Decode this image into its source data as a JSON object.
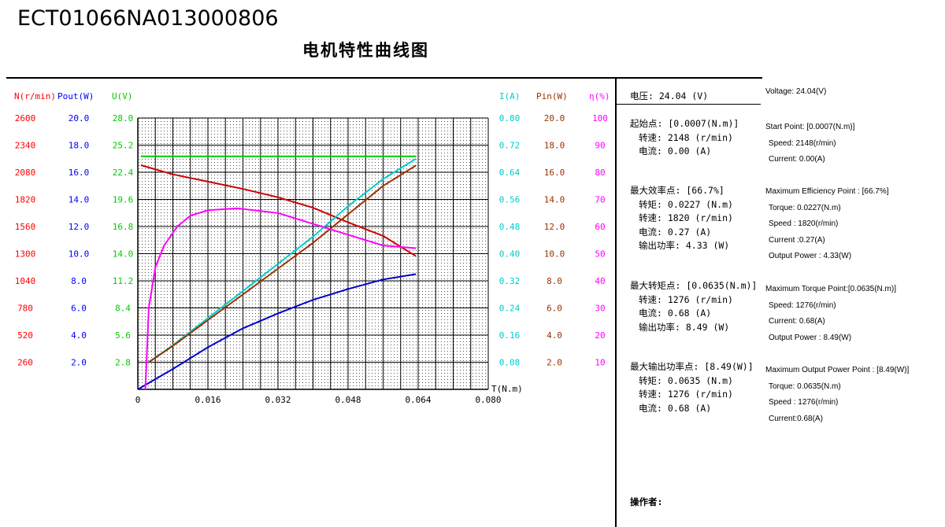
{
  "doc_id": "ECT01066NA013000806",
  "title": "电机特性曲线图",
  "axis_headers": [
    {
      "text": "N(r/min)",
      "color": "#ff0000"
    },
    {
      "text": "Pout(W)",
      "color": "#0000ff"
    },
    {
      "text": "U(V)",
      "color": "#00cc00"
    },
    {
      "text": "I(A)",
      "color": "#00cccc"
    },
    {
      "text": "Pin(W)",
      "color": "#993300"
    },
    {
      "text": "η(%)",
      "color": "#ff00ff"
    }
  ],
  "axes": [
    {
      "name": "N(r/min)",
      "color": "#ff0000",
      "ticks": [
        "2600",
        "2340",
        "2080",
        "1820",
        "1560",
        "1300",
        "1040",
        "780",
        "520",
        "260"
      ]
    },
    {
      "name": "Pout(W)",
      "color": "#0000ff",
      "ticks": [
        "20.0",
        "18.0",
        "16.0",
        "14.0",
        "12.0",
        "10.0",
        "8.0",
        "6.0",
        "4.0",
        "2.0"
      ]
    },
    {
      "name": "U(V)",
      "color": "#00cc00",
      "ticks": [
        "28.0",
        "25.2",
        "22.4",
        "19.6",
        "16.8",
        "14.0",
        "11.2",
        "8.4",
        "5.6",
        "2.8"
      ]
    },
    {
      "name": "I(A)",
      "color": "#00cccc",
      "ticks": [
        "0.80",
        "0.72",
        "0.64",
        "0.56",
        "0.48",
        "0.40",
        "0.32",
        "0.24",
        "0.16",
        "0.08"
      ]
    },
    {
      "name": "Pin(W)",
      "color": "#993300",
      "ticks": [
        "20.0",
        "18.0",
        "16.0",
        "14.0",
        "12.0",
        "10.0",
        "8.0",
        "6.0",
        "4.0",
        "2.0"
      ]
    },
    {
      "name": "η(%)",
      "color": "#ff00ff",
      "ticks": [
        "100",
        "90",
        "80",
        "70",
        "60",
        "50",
        "40",
        "30",
        "20",
        "10"
      ]
    }
  ],
  "x_ticks": [
    "0",
    "0.016",
    "0.032",
    "0.048",
    "0.064",
    "0.080"
  ],
  "x_label": "T(N.m)",
  "chart_data": {
    "type": "line",
    "xlabel": "T(N.m)",
    "xlim": [
      0,
      0.08
    ],
    "x_ticks": [
      0,
      0.016,
      0.032,
      0.048,
      0.064,
      0.08
    ],
    "grid": true,
    "series": [
      {
        "name": "N(r/min)",
        "color": "#cc0000",
        "ylim": [
          0,
          2600
        ],
        "points": [
          [
            0.0007,
            2148
          ],
          [
            0.008,
            2060
          ],
          [
            0.016,
            1990
          ],
          [
            0.024,
            1920
          ],
          [
            0.032,
            1840
          ],
          [
            0.04,
            1740
          ],
          [
            0.048,
            1600
          ],
          [
            0.056,
            1470
          ],
          [
            0.0635,
            1276
          ]
        ]
      },
      {
        "name": "Pout(W)",
        "color": "#0000cc",
        "ylim": [
          0,
          20
        ],
        "points": [
          [
            0,
            0
          ],
          [
            0.008,
            1.5
          ],
          [
            0.016,
            3.1
          ],
          [
            0.024,
            4.5
          ],
          [
            0.032,
            5.6
          ],
          [
            0.04,
            6.6
          ],
          [
            0.048,
            7.4
          ],
          [
            0.056,
            8.1
          ],
          [
            0.0635,
            8.49
          ]
        ]
      },
      {
        "name": "U(V)",
        "color": "#00cc00",
        "ylim": [
          0,
          28
        ],
        "points": [
          [
            0.0007,
            24.04
          ],
          [
            0.0635,
            24.04
          ]
        ]
      },
      {
        "name": "I(A)",
        "color": "#00cccc",
        "ylim": [
          0,
          0.8
        ],
        "points": [
          [
            0.0025,
            0.08
          ],
          [
            0.008,
            0.13
          ],
          [
            0.016,
            0.21
          ],
          [
            0.024,
            0.29
          ],
          [
            0.032,
            0.37
          ],
          [
            0.04,
            0.45
          ],
          [
            0.048,
            0.54
          ],
          [
            0.056,
            0.62
          ],
          [
            0.0635,
            0.68
          ]
        ]
      },
      {
        "name": "Pin(W)",
        "color": "#993300",
        "ylim": [
          0,
          20
        ],
        "points": [
          [
            0.0025,
            2.0
          ],
          [
            0.008,
            3.2
          ],
          [
            0.016,
            5.1
          ],
          [
            0.024,
            7.0
          ],
          [
            0.032,
            8.9
          ],
          [
            0.04,
            10.8
          ],
          [
            0.048,
            12.9
          ],
          [
            0.056,
            15.0
          ],
          [
            0.0635,
            16.5
          ]
        ]
      },
      {
        "name": "η(%)",
        "color": "#ff00ff",
        "ylim": [
          0,
          100
        ],
        "points": [
          [
            0.0017,
            0
          ],
          [
            0.002,
            10
          ],
          [
            0.0025,
            30
          ],
          [
            0.004,
            45
          ],
          [
            0.006,
            53
          ],
          [
            0.009,
            60
          ],
          [
            0.012,
            64
          ],
          [
            0.016,
            66
          ],
          [
            0.0227,
            66.7
          ],
          [
            0.032,
            65
          ],
          [
            0.04,
            61
          ],
          [
            0.048,
            57
          ],
          [
            0.056,
            53
          ],
          [
            0.0635,
            52
          ]
        ]
      }
    ]
  },
  "panel_cn": {
    "voltage": "电压:   24.04 (V)",
    "start": [
      "起始点: [0.0007(N.m)]",
      "转速: 2148 (r/min)",
      "电流: 0.00 (A)"
    ],
    "max_eff": [
      "最大效率点: [66.7%]",
      "转矩: 0.0227 (N.m)",
      "转速: 1820 (r/min)",
      "电流: 0.27 (A)",
      "输出功率: 4.33 (W)"
    ],
    "max_torque": [
      "最大转矩点: [0.0635(N.m)]",
      "转速: 1276 (r/min)",
      "电流: 0.68 (A)",
      "输出功率: 8.49 (W)"
    ],
    "max_output": [
      "最大输出功率点: [8.49(W)]",
      "转矩: 0.0635 (N.m)",
      "转速: 1276 (r/min)",
      "电流: 0.68 (A)"
    ],
    "operator": "操作者:"
  },
  "panel_en": {
    "voltage": "Voltage:  24.04(V)",
    "start": [
      "Start Point: [0.0007(N.m)]",
      "Speed: 2148(r/min)",
      "Current: 0.00(A)"
    ],
    "max_eff": [
      "Maximum Efficiency Point : [66.7%]",
      "Torque: 0.0227(N.m)",
      "Speed : 1820(r/min)",
      "Current :0.27(A)",
      "Output Power : 4.33(W)"
    ],
    "max_torque": [
      "Maximum Torque Point:[0.0635(N.m)]",
      "Speed: 1276(r/min)",
      "Current: 0.68(A)",
      "Output Power : 8.49(W)"
    ],
    "max_output": [
      "Maximum Output Power Point : [8.49(W)]",
      "Torque: 0.0635(N.m)",
      "Speed : 1276(r/min)",
      "Current:0.68(A)"
    ]
  }
}
